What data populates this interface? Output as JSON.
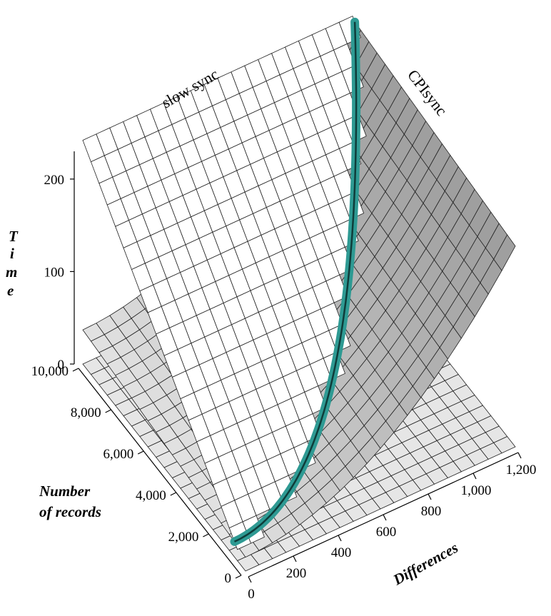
{
  "chart_data": {
    "type": "surface3d",
    "title": "",
    "surfaces": [
      {
        "name": "slow sync",
        "fill": "#ffffff",
        "description_shape": "linear in number of records"
      },
      {
        "name": "CPIsync",
        "fill": "#a8a8a8",
        "description_shape": "grows with differences"
      }
    ],
    "intersection_color": "#2e9a93",
    "axes": {
      "time": {
        "label": "Time",
        "label_letters": [
          "T",
          "i",
          "m",
          "e"
        ],
        "ticks": [
          0,
          100,
          200
        ],
        "tick_labels": [
          "0",
          "100",
          "200"
        ],
        "range": [
          0,
          230
        ]
      },
      "records": {
        "label_line1": "Number",
        "label_line2": "of records",
        "ticks": [
          0,
          2000,
          4000,
          6000,
          8000,
          10000
        ],
        "tick_labels": [
          "0",
          "2,000",
          "4,000",
          "6,000",
          "8,000",
          "10,000"
        ],
        "range": [
          0,
          10000
        ]
      },
      "differences": {
        "label": "Differences",
        "ticks": [
          0,
          200,
          400,
          600,
          800,
          1000,
          1200
        ],
        "tick_labels": [
          "0",
          "200",
          "400",
          "600",
          "800",
          "1,000",
          "1,200"
        ],
        "range": [
          0,
          1200
        ]
      }
    }
  }
}
